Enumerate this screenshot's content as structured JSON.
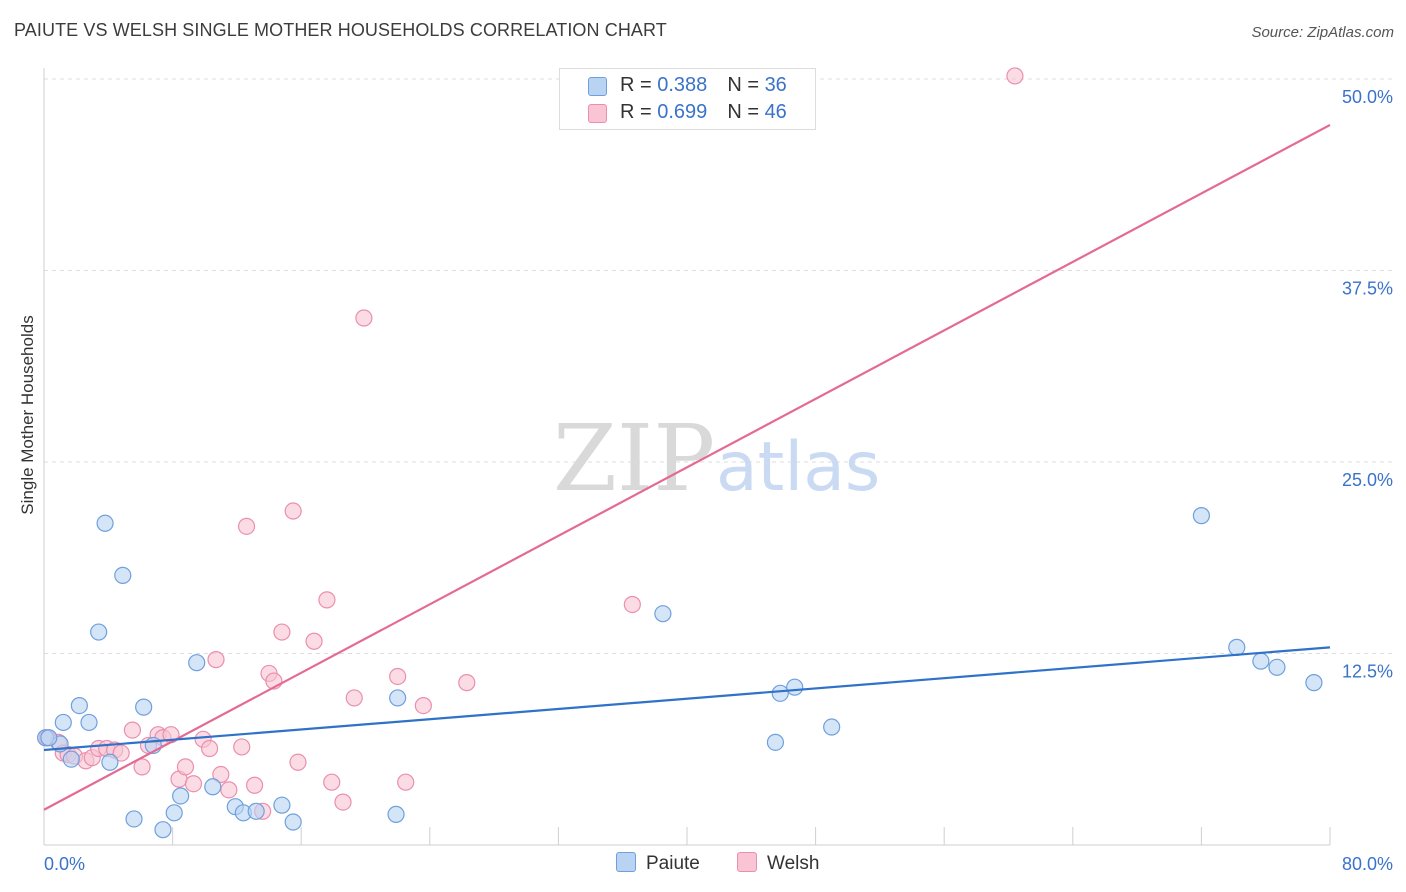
{
  "title": "PAIUTE VS WELSH SINGLE MOTHER HOUSEHOLDS CORRELATION CHART",
  "source": "Source: ZipAtlas.com",
  "watermark": {
    "zip": "ZIP",
    "atlas": "atlas"
  },
  "legend": {
    "paiute": {
      "r_label": "R = ",
      "r": "0.388",
      "n_label": "N = ",
      "n": "36"
    },
    "welsh": {
      "r_label": "R = ",
      "r": "0.699",
      "n_label": "N = ",
      "n": "46"
    }
  },
  "bottom_legend": {
    "paiute": "Paiute",
    "welsh": "Welsh"
  },
  "colors": {
    "paiute_fill": "#b9d3f3",
    "paiute_stroke": "#6fa0dc",
    "paiute_line": "#2f72c8",
    "welsh_fill": "#f9c4d4",
    "welsh_stroke": "#ea8fad",
    "welsh_line": "#e46a94",
    "tick_label": "#3a73c9",
    "grid": "#dddddd"
  },
  "chart_data": {
    "type": "scatter",
    "title": "PAIUTE VS WELSH SINGLE MOTHER HOUSEHOLDS CORRELATION CHART",
    "xlabel": "",
    "ylabel": "Single Mother Households",
    "xlim": [
      0,
      80
    ],
    "ylim": [
      0,
      50
    ],
    "x_tick_labels": [
      "0.0%",
      "80.0%"
    ],
    "y_ticks": [
      {
        "value": 12.5,
        "label": "12.5%"
      },
      {
        "value": 25,
        "label": "25.0%"
      },
      {
        "value": 37.5,
        "label": "37.5%"
      },
      {
        "value": 50,
        "label": "50.0%"
      }
    ],
    "series": [
      {
        "name": "Paiute",
        "r": 0.388,
        "n": 36,
        "trend": {
          "x0": 0,
          "y0": 6.2,
          "x1": 80,
          "y1": 12.9
        },
        "points": [
          [
            0.1,
            7.0
          ],
          [
            1.0,
            6.6
          ],
          [
            1.2,
            8.0
          ],
          [
            1.7,
            5.6
          ],
          [
            2.2,
            9.1
          ],
          [
            2.8,
            8.0
          ],
          [
            3.4,
            13.9
          ],
          [
            3.8,
            21.0
          ],
          [
            4.1,
            5.4
          ],
          [
            4.9,
            17.6
          ],
          [
            5.6,
            1.7
          ],
          [
            6.2,
            9.0
          ],
          [
            6.8,
            6.5
          ],
          [
            7.4,
            1.0
          ],
          [
            8.1,
            2.1
          ],
          [
            8.5,
            3.2
          ],
          [
            9.5,
            11.9
          ],
          [
            10.5,
            3.8
          ],
          [
            11.9,
            2.5
          ],
          [
            12.4,
            2.1
          ],
          [
            13.2,
            2.2
          ],
          [
            14.8,
            2.6
          ],
          [
            15.5,
            1.5
          ],
          [
            22.0,
            9.6
          ],
          [
            21.9,
            2.0
          ],
          [
            38.5,
            15.1
          ],
          [
            45.5,
            6.7
          ],
          [
            45.8,
            9.9
          ],
          [
            46.7,
            10.3
          ],
          [
            49.0,
            7.7
          ],
          [
            72.0,
            21.5
          ],
          [
            74.2,
            12.9
          ],
          [
            75.7,
            12.0
          ],
          [
            76.7,
            11.6
          ],
          [
            79.0,
            10.6
          ],
          [
            0.3,
            7.0
          ]
        ]
      },
      {
        "name": "Welsh",
        "r": 0.699,
        "n": 46,
        "trend": {
          "x0": 0,
          "y0": 2.3,
          "x1": 80,
          "y1": 47.0
        },
        "points": [
          [
            0.2,
            7.0
          ],
          [
            0.9,
            6.7
          ],
          [
            1.2,
            6.0
          ],
          [
            1.5,
            5.9
          ],
          [
            1.9,
            5.8
          ],
          [
            2.6,
            5.5
          ],
          [
            3.0,
            5.7
          ],
          [
            3.4,
            6.3
          ],
          [
            3.9,
            6.3
          ],
          [
            4.4,
            6.2
          ],
          [
            4.8,
            6.0
          ],
          [
            5.5,
            7.5
          ],
          [
            6.1,
            5.1
          ],
          [
            6.5,
            6.5
          ],
          [
            7.1,
            7.2
          ],
          [
            7.4,
            7.0
          ],
          [
            7.9,
            7.2
          ],
          [
            8.4,
            4.3
          ],
          [
            8.8,
            5.1
          ],
          [
            9.3,
            4.0
          ],
          [
            9.9,
            6.9
          ],
          [
            10.3,
            6.3
          ],
          [
            10.7,
            12.1
          ],
          [
            11.0,
            4.6
          ],
          [
            11.5,
            3.6
          ],
          [
            12.3,
            6.4
          ],
          [
            12.6,
            20.8
          ],
          [
            13.1,
            3.9
          ],
          [
            13.6,
            2.2
          ],
          [
            14.0,
            11.2
          ],
          [
            14.3,
            10.7
          ],
          [
            14.8,
            13.9
          ],
          [
            15.5,
            21.8
          ],
          [
            15.8,
            5.4
          ],
          [
            16.8,
            13.3
          ],
          [
            17.6,
            16.0
          ],
          [
            17.9,
            4.1
          ],
          [
            18.6,
            2.8
          ],
          [
            19.3,
            9.6
          ],
          [
            19.9,
            34.4
          ],
          [
            22.0,
            11.0
          ],
          [
            22.5,
            4.1
          ],
          [
            23.6,
            9.1
          ],
          [
            26.3,
            10.6
          ],
          [
            36.6,
            15.7
          ],
          [
            60.4,
            50.2
          ]
        ]
      }
    ]
  }
}
